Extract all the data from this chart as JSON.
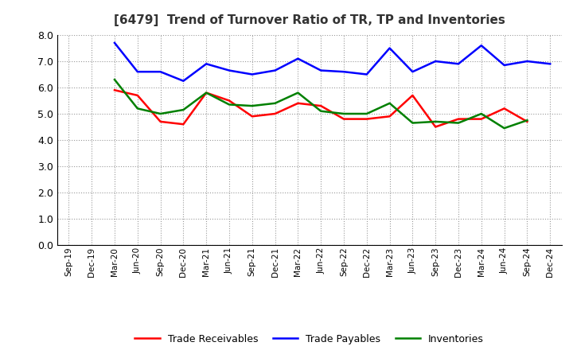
{
  "title": "[6479]  Trend of Turnover Ratio of TR, TP and Inventories",
  "x_labels": [
    "Sep-19",
    "Dec-19",
    "Mar-20",
    "Jun-20",
    "Sep-20",
    "Dec-20",
    "Mar-21",
    "Jun-21",
    "Sep-21",
    "Dec-21",
    "Mar-22",
    "Jun-22",
    "Sep-22",
    "Dec-22",
    "Mar-23",
    "Jun-23",
    "Sep-23",
    "Dec-23",
    "Mar-24",
    "Jun-24",
    "Sep-24",
    "Dec-24"
  ],
  "trade_receivables": [
    null,
    null,
    5.9,
    5.7,
    4.7,
    4.6,
    5.8,
    5.5,
    4.9,
    5.0,
    5.4,
    5.3,
    4.8,
    4.8,
    4.9,
    5.7,
    4.5,
    4.8,
    4.8,
    5.2,
    4.7,
    null
  ],
  "trade_payables": [
    null,
    null,
    7.7,
    6.6,
    6.6,
    6.25,
    6.9,
    6.65,
    6.5,
    6.65,
    7.1,
    6.65,
    6.6,
    6.5,
    7.5,
    6.6,
    7.0,
    6.9,
    7.6,
    6.85,
    7.0,
    6.9
  ],
  "inventories": [
    null,
    null,
    6.3,
    5.2,
    5.0,
    5.15,
    5.8,
    5.35,
    5.3,
    5.4,
    5.8,
    5.1,
    5.0,
    5.0,
    5.4,
    4.65,
    4.7,
    4.65,
    5.0,
    4.45,
    4.75,
    null
  ],
  "ylim": [
    0.0,
    8.0
  ],
  "yticks": [
    0.0,
    1.0,
    2.0,
    3.0,
    4.0,
    5.0,
    6.0,
    7.0,
    8.0
  ],
  "line_colors": {
    "trade_receivables": "#ff0000",
    "trade_payables": "#0000ff",
    "inventories": "#008000"
  },
  "line_width": 1.8,
  "background_color": "#ffffff",
  "plot_bg_color": "#ffffff",
  "grid_color": "#aaaaaa",
  "legend_labels": [
    "Trade Receivables",
    "Trade Payables",
    "Inventories"
  ]
}
